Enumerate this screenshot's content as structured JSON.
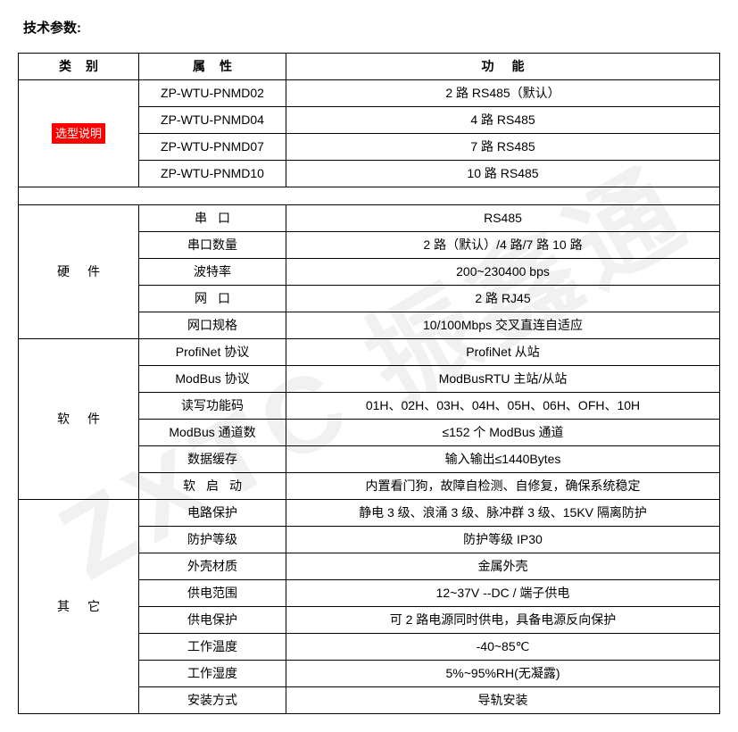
{
  "title": "技术参数:",
  "watermark": "ZXTC 振鑫通",
  "headers": {
    "category": "类别",
    "attribute": "属性",
    "function": "功能"
  },
  "colors": {
    "highlight_bg": "#ff0000",
    "highlight_fg": "#ffffff",
    "border": "#000000",
    "background": "#ffffff",
    "watermark": "rgba(200,200,200,0.25)"
  },
  "section1": {
    "category_label": "选型说明",
    "rows": [
      {
        "attr": "ZP-WTU-PNMD02",
        "func": "2 路 RS485（默认）"
      },
      {
        "attr": "ZP-WTU-PNMD04",
        "func": "4 路 RS485"
      },
      {
        "attr": "ZP-WTU-PNMD07",
        "func": "7 路 RS485"
      },
      {
        "attr": "ZP-WTU-PNMD10",
        "func": "10 路 RS485"
      }
    ]
  },
  "section2": {
    "category_label": "硬件",
    "rows": [
      {
        "attr": "串口",
        "func": "RS485"
      },
      {
        "attr": "串口数量",
        "func": "2 路（默认）/4 路/7 路 10 路"
      },
      {
        "attr": "波特率",
        "func": "200~230400 bps"
      },
      {
        "attr": "网口",
        "func": "2 路 RJ45"
      },
      {
        "attr": "网口规格",
        "func": "10/100Mbps 交叉直连自适应"
      }
    ]
  },
  "section3": {
    "category_label": "软件",
    "rows": [
      {
        "attr": "ProfiNet 协议",
        "func": "ProfiNet 从站"
      },
      {
        "attr": "ModBus 协议",
        "func": "ModBusRTU 主站/从站"
      },
      {
        "attr": "读写功能码",
        "func": "01H、02H、03H、04H、05H、06H、OFH、10H"
      },
      {
        "attr": "ModBus 通道数",
        "func": "≤152 个 ModBus 通道"
      },
      {
        "attr": "数据缓存",
        "func": "输入输出≤1440Bytes"
      },
      {
        "attr": "软启动",
        "func": "内置看门狗，故障自检测、自修复，确保系统稳定"
      }
    ]
  },
  "section4": {
    "category_label": "其它",
    "rows": [
      {
        "attr": "电路保护",
        "func": "静电 3 级、浪涌 3 级、脉冲群 3 级、15KV 隔离防护"
      },
      {
        "attr": "防护等级",
        "func": "防护等级 IP30"
      },
      {
        "attr": "外壳材质",
        "func": "金属外壳"
      },
      {
        "attr": "供电范围",
        "func": "12~37V --DC /  端子供电"
      },
      {
        "attr": "供电保护",
        "func": "可 2 路电源同时供电，具备电源反向保护"
      },
      {
        "attr": "工作温度",
        "func": "-40~85℃"
      },
      {
        "attr": "工作湿度",
        "func": "5%~95%RH(无凝露)"
      },
      {
        "attr": "安装方式",
        "func": "导轨安装"
      }
    ]
  }
}
